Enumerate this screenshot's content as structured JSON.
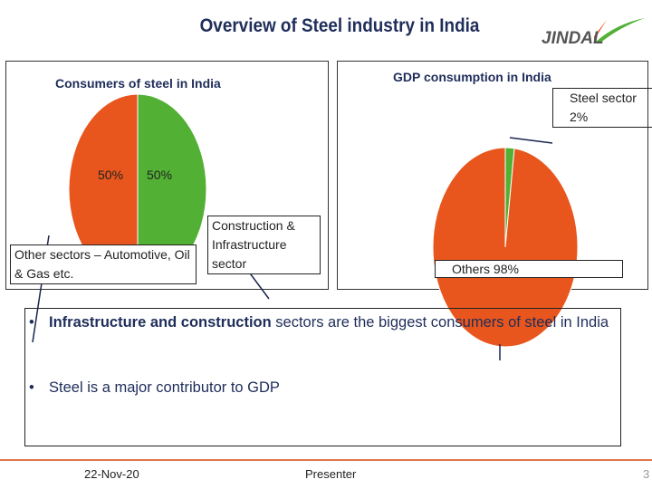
{
  "slide": {
    "title": "Overview of Steel industry in India",
    "logo_text": "JINDAL"
  },
  "chart_data": [
    {
      "type": "pie",
      "title": "Consumers of steel in India",
      "slices": [
        {
          "label": "Other sectors – Automotive, Oil & Gas etc.",
          "value": 50,
          "data_label": "50%",
          "color": "#e8561e"
        },
        {
          "label": "Construction & Infrastructure sector",
          "value": 50,
          "data_label": "50%",
          "color": "#52b034"
        }
      ]
    },
    {
      "type": "pie",
      "title": "GDP consumption in India",
      "slices": [
        {
          "label": "Steel sector 2%",
          "value": 2,
          "color": "#52b034"
        },
        {
          "label": "Others 98%",
          "value": 98,
          "color": "#e8561e"
        }
      ]
    }
  ],
  "bullets": [
    {
      "bold": "Infrastructure and construction",
      "rest": " sectors are the biggest consumers of steel in India"
    },
    {
      "bold": "",
      "rest": "Steel is a major contributor to GDP"
    }
  ],
  "footer": {
    "date": "22-Nov-20",
    "presenter": "Presenter",
    "page": "3"
  },
  "colors": {
    "accent_orange": "#e8561e",
    "accent_green": "#52b034",
    "title_navy": "#1f2d5a"
  }
}
